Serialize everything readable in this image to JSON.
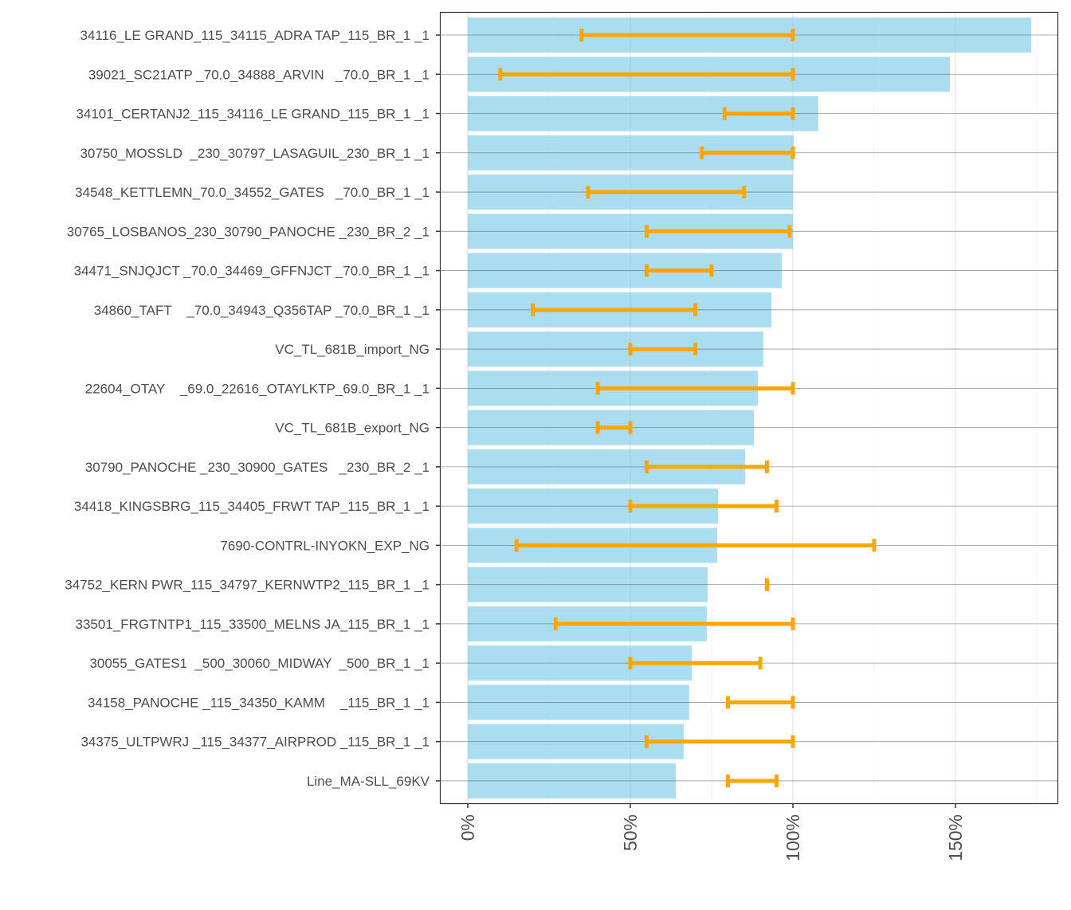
{
  "chart_data": {
    "type": "bar",
    "orientation": "horizontal",
    "title": "",
    "xlabel": "",
    "ylabel": "",
    "xlim": [
      -8.5,
      182
    ],
    "x_ticks": [
      0,
      50,
      100,
      150
    ],
    "x_tick_labels": [
      "0%",
      "50%",
      "100%",
      "150%"
    ],
    "grid": true,
    "colors": {
      "bar": "#87CEEB",
      "errorbar": "#FFA500",
      "tick_text": "#4d4d4d",
      "panel_border": "#333333"
    },
    "categories": [
      "34116_LE GRAND_115_34115_ADRA TAP_115_BR_1 _1",
      "39021_SC21ATP _70.0_34888_ARVIN   _70.0_BR_1 _1",
      "34101_CERTANJ2_115_34116_LE GRAND_115_BR_1 _1",
      "30750_MOSSLD  _230_30797_LASAGUIL_230_BR_1 _1",
      "34548_KETTLEMN_70.0_34552_GATES   _70.0_BR_1 _1",
      "30765_LOSBANOS_230_30790_PANOCHE _230_BR_2 _1",
      "34471_SNJQJCT _70.0_34469_GFFNJCT _70.0_BR_1 _1",
      "34860_TAFT    _70.0_34943_Q356TAP _70.0_BR_1 _1",
      "VC_TL_681B_import_NG",
      "22604_OTAY    _69.0_22616_OTAYLKTP_69.0_BR_1 _1",
      "VC_TL_681B_export_NG",
      "30790_PANOCHE _230_30900_GATES   _230_BR_2 _1",
      "34418_KINGSBRG_115_34405_FRWT TAP_115_BR_1 _1",
      "7690-CONTRL-INYOKN_EXP_NG",
      "34752_KERN PWR_115_34797_KERNWTP2_115_BR_1 _1",
      "33501_FRGTNTP1_115_33500_MELNS JA_115_BR_1 _1",
      "30055_GATES1  _500_30060_MIDWAY  _500_BR_1 _1",
      "34158_PANOCHE _115_34350_KAMM    _115_BR_1 _1",
      "34375_ULTPWRJ _115_34377_AIRPROD _115_BR_1 _1",
      "Line_MA-SLL_69KV"
    ],
    "values": [
      173.3,
      148.3,
      107.8,
      100.2,
      100,
      100,
      96.6,
      93.4,
      90.9,
      89.2,
      88,
      85.3,
      77,
      76.7,
      73.8,
      73.5,
      68.9,
      68.1,
      66.4,
      64
    ],
    "error_low": [
      35,
      10,
      79,
      72,
      37,
      55,
      55,
      20,
      50,
      40,
      40,
      55,
      50,
      15,
      92,
      27,
      50,
      80,
      55,
      80
    ],
    "error_high": [
      100,
      100,
      100,
      100,
      85,
      99,
      75,
      70,
      70,
      100,
      50,
      92,
      95,
      125,
      92,
      100,
      90,
      100,
      100,
      95
    ]
  }
}
